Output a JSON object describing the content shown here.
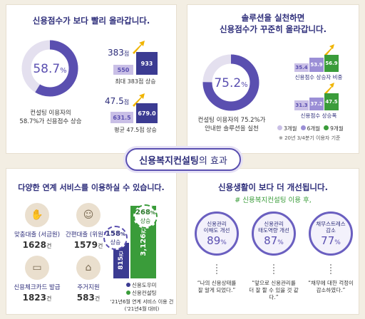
{
  "panel1": {
    "title": "신용점수가 보다 빨리 올라갑니다.",
    "donut_value": "58.7",
    "donut_unit": "%",
    "donut_fraction": 0.587,
    "caption_line1": "컨설팅 이용자의",
    "caption_line2": "58.7%가 신용점수 상승",
    "max_rise_value": "383",
    "max_rise_unit": "점",
    "max_before": "550",
    "max_after": "933",
    "max_label": "최대 383점 상승",
    "avg_rise_value": "47.5",
    "avg_rise_unit": "점",
    "avg_before": "631.5",
    "avg_after": "679.0",
    "avg_label": "평균 47.5점 상승"
  },
  "panel2": {
    "title_line1": "솔루션을 실천하면",
    "title_line2": "신용점수가 꾸준히 올라갑니다.",
    "donut_value": "75.2",
    "donut_unit": "%",
    "donut_fraction": 0.752,
    "caption_line1": "컨설팅 이용자의 75.2%가",
    "caption_line2": "안내한 솔루션을 실천",
    "group1_values": [
      "35.4",
      "53.9",
      "56.9"
    ],
    "group1_label": "신용점수 상승자 비중",
    "group2_values": [
      "31.3",
      "37.2",
      "47.5"
    ],
    "group2_label": "신용점수 상승폭",
    "legend": [
      "3개월",
      "6개월",
      "9개월"
    ],
    "note": "※ 20년 3/4분기 이용자 기준"
  },
  "banner": {
    "text_bold": "신용복지컨설팅",
    "text_rest": "의 효과"
  },
  "panel3": {
    "title": "다양한 연계 서비스를 이용하실 수 있습니다.",
    "services": [
      {
        "label": "맞춤대출 (서금원)",
        "count": "1628",
        "unit": "건"
      },
      {
        "label": "간편대출 (위원회)",
        "count": "1579",
        "unit": "건"
      },
      {
        "label": "신용체크카드 발급",
        "count": "1823",
        "unit": "건"
      },
      {
        "label": "주거지원",
        "count": "583",
        "unit": "건"
      }
    ],
    "bar_before": "815",
    "bar_before_unit": "건",
    "bar_after": "3,126",
    "bar_after_unit": "건",
    "badge1_value": "158",
    "badge1_unit": "%",
    "badge1_label": "상승",
    "badge2_value": "268",
    "badge2_unit": "%",
    "badge2_label": "상승",
    "legend": [
      "신용도우미",
      "신용컨설팅"
    ],
    "note_line1": "'21년6월 연계 서비스 이용 건",
    "note_line2": "('21년4월 대비)"
  },
  "panel4": {
    "title": "신용생활이 보다 더 개선됩니다.",
    "subtitle_hash": "#",
    "subtitle": "신용복지컨설팅 이용 후,",
    "circles": [
      {
        "label1": "신용관리",
        "label2": "이해도 개선",
        "value": "89",
        "unit": "%"
      },
      {
        "label1": "신용관리",
        "label2": "태도역량 개선",
        "value": "87",
        "unit": "%"
      },
      {
        "label1": "채무스트레스",
        "label2": "감소",
        "value": "77",
        "unit": "%"
      }
    ],
    "quotes": [
      {
        "line1": "“나의 신용상태를",
        "line2": "잘 알게 되었다.”"
      },
      {
        "line1": "“앞으로 신용관리를",
        "line2": "더 잘 할 수 있을 것 같다.”"
      },
      {
        "line1": "“채무에 대한 걱정이",
        "line2": "감소하였다.”"
      }
    ]
  },
  "colors": {
    "navy": "#2d2d7a",
    "purple": "#5a4fb0",
    "lavender": "#c9bfe6",
    "light_purple": "#9b8fd6",
    "green": "#3a9c3a",
    "gold": "#f0b400",
    "bg": "#f3eee3"
  }
}
